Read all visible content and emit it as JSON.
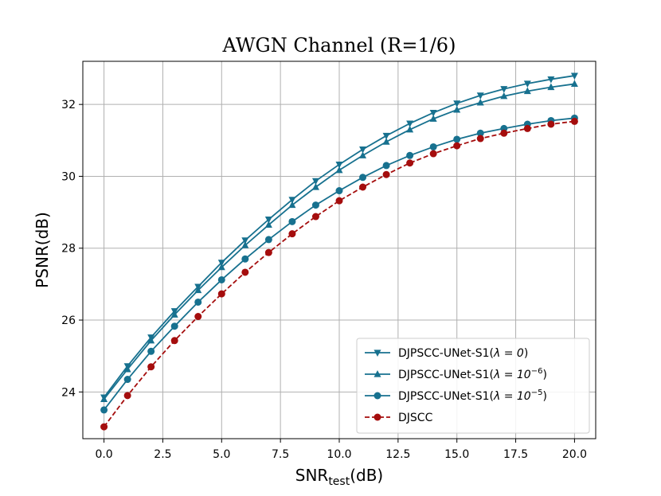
{
  "chart_data": {
    "type": "line",
    "title": "AWGN Channel (R=1/6)",
    "xlabel_main": "SNR",
    "xlabel_sub": "test",
    "xlabel_unit": "(dB)",
    "ylabel": "PSNR(dB)",
    "xlim": [
      -0.9,
      20.9
    ],
    "ylim": [
      22.7,
      33.2
    ],
    "xticks": [
      0.0,
      2.5,
      5.0,
      7.5,
      10.0,
      12.5,
      15.0,
      17.5,
      20.0
    ],
    "xtick_labels": [
      "0.0",
      "2.5",
      "5.0",
      "7.5",
      "10.0",
      "12.5",
      "15.0",
      "17.5",
      "20.0"
    ],
    "yticks": [
      24,
      26,
      28,
      30,
      32
    ],
    "ytick_labels": [
      "24",
      "26",
      "28",
      "30",
      "32"
    ],
    "grid": true,
    "legend_position": "lower-right",
    "x": [
      0,
      1,
      2,
      3,
      4,
      5,
      6,
      7,
      8,
      9,
      10,
      11,
      12,
      13,
      14,
      15,
      16,
      17,
      18,
      19,
      20
    ],
    "series": [
      {
        "name": "DJPSCC-UNet-S1(λ = 0)",
        "legend_prefix": "DJPSCC-UNet-S1(",
        "legend_lambda": "λ = 0",
        "legend_exp": "",
        "legend_suffix": ")",
        "color": "#17718f",
        "marker": "triangle-down",
        "linestyle": "solid",
        "values": [
          23.85,
          24.72,
          25.52,
          26.25,
          26.93,
          27.6,
          28.22,
          28.8,
          29.35,
          29.87,
          30.33,
          30.75,
          31.13,
          31.47,
          31.77,
          32.03,
          32.25,
          32.43,
          32.58,
          32.7,
          32.8
        ]
      },
      {
        "name": "DJPSCC-UNet-S1(λ = 10^-6)",
        "legend_prefix": "DJPSCC-UNet-S1(",
        "legend_lambda": "λ = 10",
        "legend_exp": "−6",
        "legend_suffix": ")",
        "color": "#17718f",
        "marker": "triangle-up",
        "linestyle": "solid",
        "values": [
          23.8,
          24.63,
          25.43,
          26.15,
          26.83,
          27.47,
          28.08,
          28.65,
          29.2,
          29.7,
          30.17,
          30.58,
          30.96,
          31.3,
          31.6,
          31.85,
          32.05,
          32.23,
          32.37,
          32.48,
          32.57
        ]
      },
      {
        "name": "DJPSCC-UNet-S1(λ = 10^-5)",
        "legend_prefix": "DJPSCC-UNet-S1(",
        "legend_lambda": "λ = 10",
        "legend_exp": "−5",
        "legend_suffix": ")",
        "color": "#17718f",
        "marker": "circle",
        "linestyle": "solid",
        "values": [
          23.5,
          24.35,
          25.13,
          25.83,
          26.5,
          27.12,
          27.7,
          28.24,
          28.74,
          29.2,
          29.6,
          29.97,
          30.3,
          30.58,
          30.82,
          31.03,
          31.2,
          31.33,
          31.45,
          31.55,
          31.62
        ]
      },
      {
        "name": "DJSCC",
        "legend_prefix": "DJSCC",
        "legend_lambda": "",
        "legend_exp": "",
        "legend_suffix": "",
        "color": "#a50d0d",
        "marker": "circle",
        "linestyle": "dashed",
        "values": [
          23.03,
          23.9,
          24.7,
          25.43,
          26.1,
          26.73,
          27.33,
          27.88,
          28.4,
          28.88,
          29.32,
          29.7,
          30.05,
          30.37,
          30.63,
          30.85,
          31.05,
          31.2,
          31.33,
          31.45,
          31.53
        ]
      }
    ]
  }
}
